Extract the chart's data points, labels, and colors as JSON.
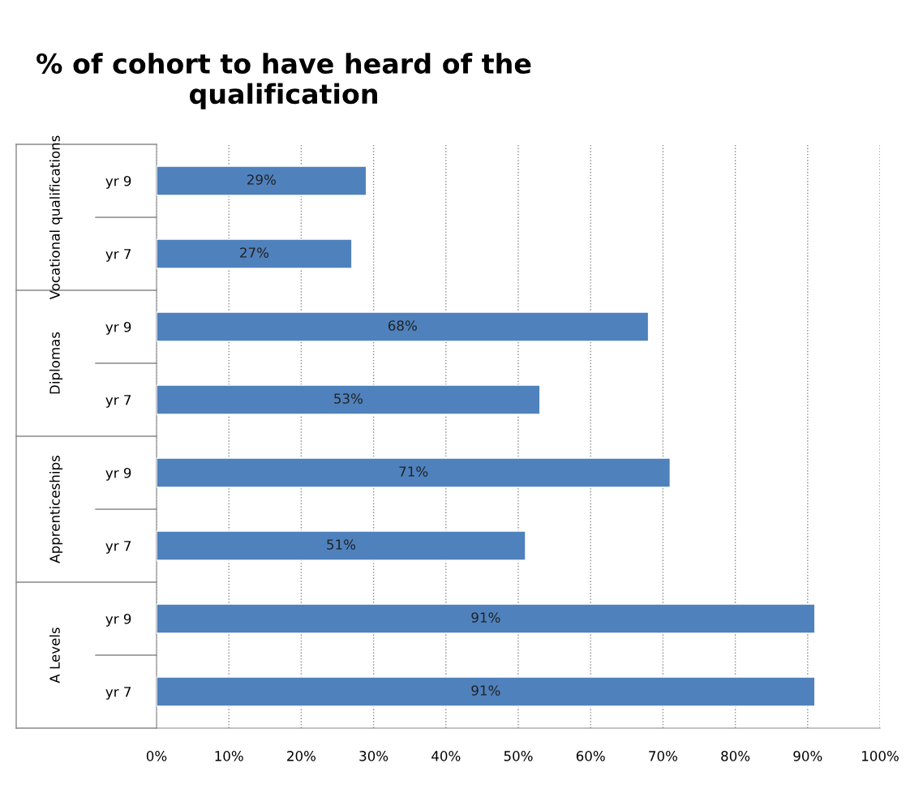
{
  "chart_data": {
    "type": "bar",
    "orientation": "horizontal",
    "title": "% of cohort to have heard of the qualification",
    "categories": [
      "yr 9",
      "yr 7",
      "yr 9",
      "yr 7",
      "yr 9",
      "yr 7",
      "yr 9",
      "yr 7"
    ],
    "values": [
      29,
      27,
      68,
      53,
      71,
      51,
      91,
      91
    ],
    "value_labels": [
      "29%",
      "27%",
      "68%",
      "53%",
      "71%",
      "51%",
      "91%",
      "91%"
    ],
    "color": "#4f81bd",
    "annotations": [
      "Vocational qualifications",
      "Diplomas",
      "Apprenticeships",
      "A Levels"
    ],
    "xlim": [
      0,
      100
    ],
    "xticks": [
      {
        "value": 0,
        "label": "0%"
      },
      {
        "value": 10,
        "label": "10%"
      },
      {
        "value": 20,
        "label": "20%"
      },
      {
        "value": 30,
        "label": "30%"
      },
      {
        "value": 40,
        "label": "40%"
      },
      {
        "value": 50,
        "label": "50%"
      },
      {
        "value": 60,
        "label": "60%"
      },
      {
        "value": 70,
        "label": "70%"
      },
      {
        "value": 80,
        "label": "80%"
      },
      {
        "value": 90,
        "label": "90%"
      },
      {
        "value": 100,
        "label": "100%"
      }
    ],
    "grid": "x",
    "legend": false
  }
}
